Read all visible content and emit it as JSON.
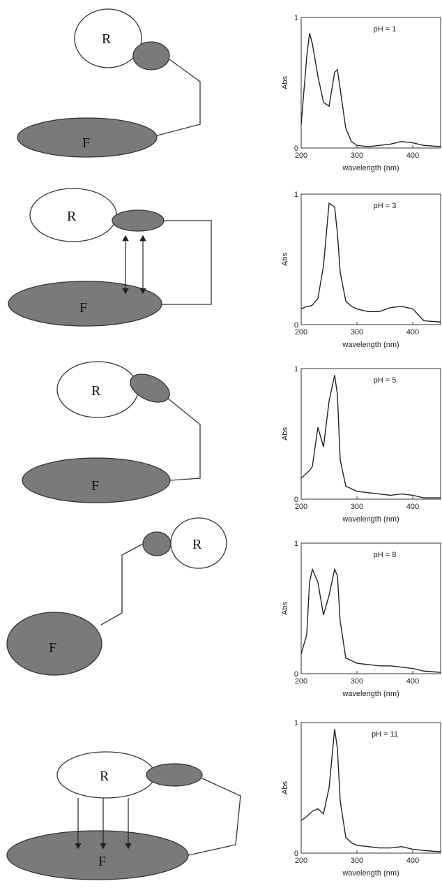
{
  "chart_data": [
    {
      "type": "line",
      "title": "pH = 1",
      "x_label": "wavelength (nm)",
      "y_label": "Abs",
      "color": "#222222",
      "x": [
        200,
        210,
        215,
        220,
        230,
        240,
        250,
        260,
        265,
        270,
        280,
        290,
        300,
        320,
        340,
        360,
        380,
        400,
        420,
        450
      ],
      "values": [
        0.18,
        0.7,
        0.88,
        0.8,
        0.55,
        0.35,
        0.32,
        0.58,
        0.6,
        0.45,
        0.15,
        0.05,
        0.02,
        0.01,
        0.02,
        0.03,
        0.05,
        0.04,
        0.02,
        0.01
      ],
      "xlim": [
        200,
        450
      ],
      "ylim": [
        0,
        1
      ],
      "xticks": [
        200,
        300,
        400
      ],
      "yticks": [
        0,
        1
      ]
    },
    {
      "type": "line",
      "title": "pH = 3",
      "x_label": "wavelength (nm)",
      "y_label": "Abs",
      "color": "#222222",
      "x": [
        200,
        210,
        215,
        220,
        230,
        240,
        250,
        260,
        265,
        270,
        280,
        290,
        300,
        320,
        340,
        360,
        380,
        400,
        420,
        450
      ],
      "values": [
        0.12,
        0.14,
        0.14,
        0.15,
        0.2,
        0.45,
        0.93,
        0.9,
        0.7,
        0.4,
        0.18,
        0.14,
        0.12,
        0.1,
        0.1,
        0.13,
        0.14,
        0.12,
        0.03,
        0.02
      ],
      "xlim": [
        200,
        450
      ],
      "ylim": [
        0,
        1
      ],
      "xticks": [
        200,
        300,
        400
      ],
      "yticks": [
        0,
        1
      ]
    },
    {
      "type": "line",
      "title": "pH = 5",
      "x_label": "wavelength (nm)",
      "y_label": "Abs",
      "color": "#222222",
      "x": [
        200,
        210,
        215,
        220,
        230,
        240,
        250,
        260,
        265,
        270,
        280,
        290,
        300,
        320,
        340,
        360,
        380,
        400,
        420,
        450
      ],
      "values": [
        0.16,
        0.2,
        0.22,
        0.25,
        0.55,
        0.4,
        0.75,
        0.95,
        0.8,
        0.3,
        0.1,
        0.08,
        0.06,
        0.05,
        0.04,
        0.03,
        0.04,
        0.03,
        0.01,
        0.01
      ],
      "xlim": [
        200,
        450
      ],
      "ylim": [
        0,
        1
      ],
      "xticks": [
        200,
        300,
        400
      ],
      "yticks": [
        0,
        1
      ]
    },
    {
      "type": "line",
      "title": "pH = 8",
      "x_label": "wavelength (nm)",
      "y_label": "Abs",
      "color": "#222222",
      "x": [
        200,
        210,
        215,
        220,
        230,
        240,
        250,
        260,
        265,
        270,
        280,
        290,
        300,
        320,
        340,
        360,
        380,
        400,
        420,
        450
      ],
      "values": [
        0.15,
        0.3,
        0.7,
        0.8,
        0.7,
        0.45,
        0.6,
        0.8,
        0.75,
        0.4,
        0.12,
        0.1,
        0.08,
        0.07,
        0.06,
        0.06,
        0.05,
        0.04,
        0.02,
        0.01
      ],
      "xlim": [
        200,
        450
      ],
      "ylim": [
        0,
        1
      ],
      "xticks": [
        200,
        300,
        400
      ],
      "yticks": [
        0,
        1
      ]
    },
    {
      "type": "line",
      "title": "pH = 11",
      "x_label": "wavelength (nm)",
      "y_label": "Abs",
      "color": "#222222",
      "x": [
        200,
        210,
        215,
        220,
        230,
        240,
        250,
        260,
        265,
        270,
        280,
        290,
        300,
        320,
        340,
        360,
        380,
        400,
        420,
        450
      ],
      "values": [
        0.25,
        0.28,
        0.3,
        0.32,
        0.34,
        0.3,
        0.5,
        0.95,
        0.8,
        0.4,
        0.12,
        0.08,
        0.06,
        0.05,
        0.04,
        0.04,
        0.05,
        0.03,
        0.02,
        0.01
      ],
      "xlim": [
        200,
        450
      ],
      "ylim": [
        0,
        1
      ],
      "xticks": [
        200,
        300,
        400
      ],
      "yticks": [
        0,
        1
      ]
    }
  ],
  "diagrams": [
    {
      "receptor": "R",
      "fluorophore": "F"
    },
    {
      "receptor": "R",
      "fluorophore": "F"
    },
    {
      "receptor": "R",
      "fluorophore": "F"
    },
    {
      "receptor": "R",
      "fluorophore": "F"
    },
    {
      "receptor": "R",
      "fluorophore": "F"
    }
  ]
}
